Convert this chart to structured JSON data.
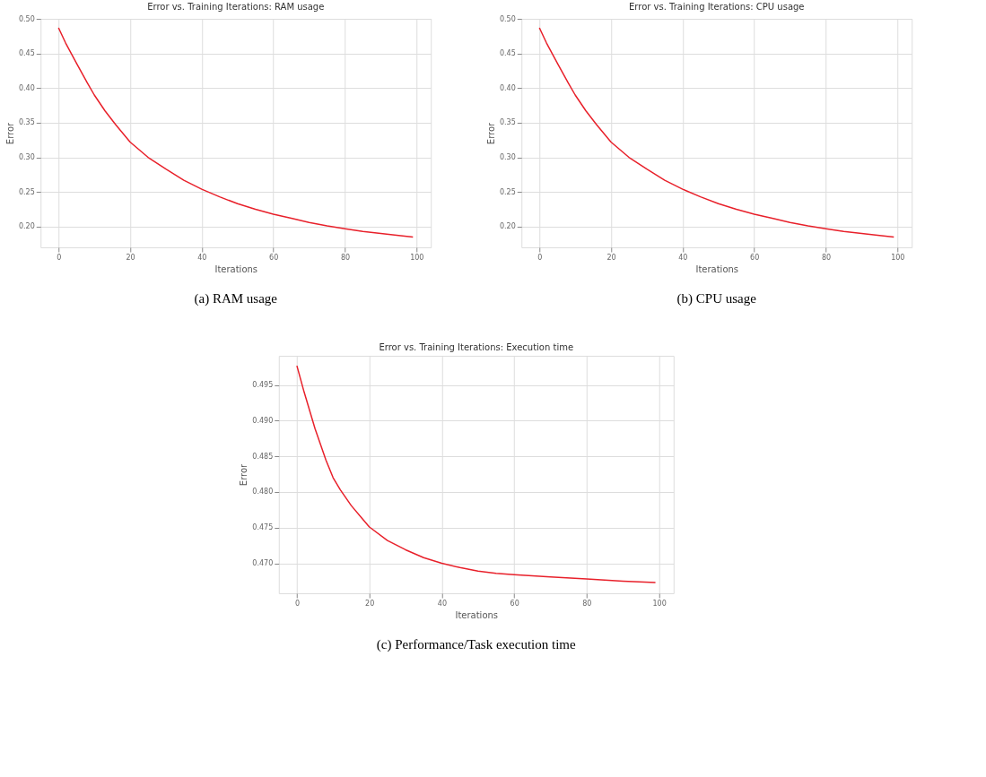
{
  "chart_data": [
    {
      "type": "line",
      "title": "Error vs. Training Iterations: RAM usage",
      "xlabel": "Iterations",
      "ylabel": "Error",
      "annotations": [
        "(a)  RAM usage"
      ],
      "x": [
        0,
        2,
        5,
        8,
        10,
        13,
        16,
        20,
        25,
        30,
        35,
        40,
        45,
        50,
        55,
        60,
        65,
        70,
        75,
        80,
        85,
        90,
        95,
        99
      ],
      "series": [
        {
          "color": "#e8202a",
          "values": [
            0.487,
            0.465,
            0.436,
            0.408,
            0.39,
            0.367,
            0.347,
            0.322,
            0.3,
            0.283,
            0.267,
            0.254,
            0.243,
            0.233,
            0.225,
            0.218,
            0.212,
            0.206,
            0.201,
            0.197,
            0.193,
            0.19,
            0.187,
            0.185
          ]
        }
      ],
      "xlim": [
        -5,
        104
      ],
      "ylim": [
        0.17,
        0.5
      ],
      "xticks": [
        0,
        20,
        40,
        60,
        80,
        100
      ],
      "yticks": [
        {
          "value": 0.2,
          "label": "0.20"
        },
        0.25,
        {
          "value": 0.3,
          "label": "0.30"
        },
        0.35,
        {
          "value": 0.4,
          "label": "0.40"
        },
        0.45,
        {
          "value": 0.5,
          "label": "0.50"
        }
      ],
      "grid": true,
      "marker": "none",
      "line_style": "solid"
    },
    {
      "type": "line",
      "title": "Error vs. Training Iterations: CPU usage",
      "xlabel": "Iterations",
      "ylabel": "Error",
      "annotations": [
        "(b)  CPU usage"
      ],
      "x": [
        0,
        2,
        5,
        8,
        10,
        13,
        16,
        20,
        25,
        30,
        35,
        40,
        45,
        50,
        55,
        60,
        65,
        70,
        75,
        80,
        85,
        90,
        95,
        99
      ],
      "series": [
        {
          "color": "#e8202a",
          "values": [
            0.487,
            0.465,
            0.436,
            0.408,
            0.39,
            0.367,
            0.347,
            0.322,
            0.3,
            0.283,
            0.267,
            0.254,
            0.243,
            0.233,
            0.225,
            0.218,
            0.212,
            0.206,
            0.201,
            0.197,
            0.193,
            0.19,
            0.187,
            0.185
          ]
        }
      ],
      "xlim": [
        -5,
        104
      ],
      "ylim": [
        0.17,
        0.5
      ],
      "xticks": [
        0,
        20,
        40,
        60,
        80,
        100
      ],
      "yticks": [
        {
          "value": 0.2,
          "label": "0.20"
        },
        0.25,
        {
          "value": 0.3,
          "label": "0.30"
        },
        0.35,
        {
          "value": 0.4,
          "label": "0.40"
        },
        0.45,
        {
          "value": 0.5,
          "label": "0.50"
        }
      ],
      "grid": true,
      "marker": "none",
      "line_style": "solid"
    },
    {
      "type": "line",
      "title": "Error vs. Training Iterations: Execution time",
      "xlabel": "Iterations",
      "ylabel": "Error",
      "annotations": [
        "(c)  Performance/Task execution time"
      ],
      "x": [
        0,
        2,
        5,
        8,
        10,
        12,
        15,
        18,
        20,
        25,
        30,
        35,
        40,
        45,
        50,
        55,
        60,
        70,
        80,
        90,
        99
      ],
      "series": [
        {
          "color": "#e8202a",
          "values": [
            0.4977,
            0.494,
            0.4889,
            0.4845,
            0.482,
            0.4803,
            0.4781,
            0.4763,
            0.4751,
            0.4732,
            0.4719,
            0.4708,
            0.47,
            0.4694,
            0.4689,
            0.4686,
            0.4684,
            0.4681,
            0.4678,
            0.4675,
            0.4673
          ]
        }
      ],
      "xlim": [
        -5,
        104
      ],
      "ylim": [
        0.4658,
        0.4991
      ],
      "xticks": [
        0,
        20,
        40,
        60,
        80,
        100
      ],
      "yticks": [
        {
          "value": 0.47,
          "label": "0.470"
        },
        0.475,
        {
          "value": 0.48,
          "label": "0.480"
        },
        0.485,
        {
          "value": 0.49,
          "label": "0.490"
        },
        0.495
      ],
      "grid": true,
      "marker": "none",
      "line_style": "solid"
    }
  ]
}
